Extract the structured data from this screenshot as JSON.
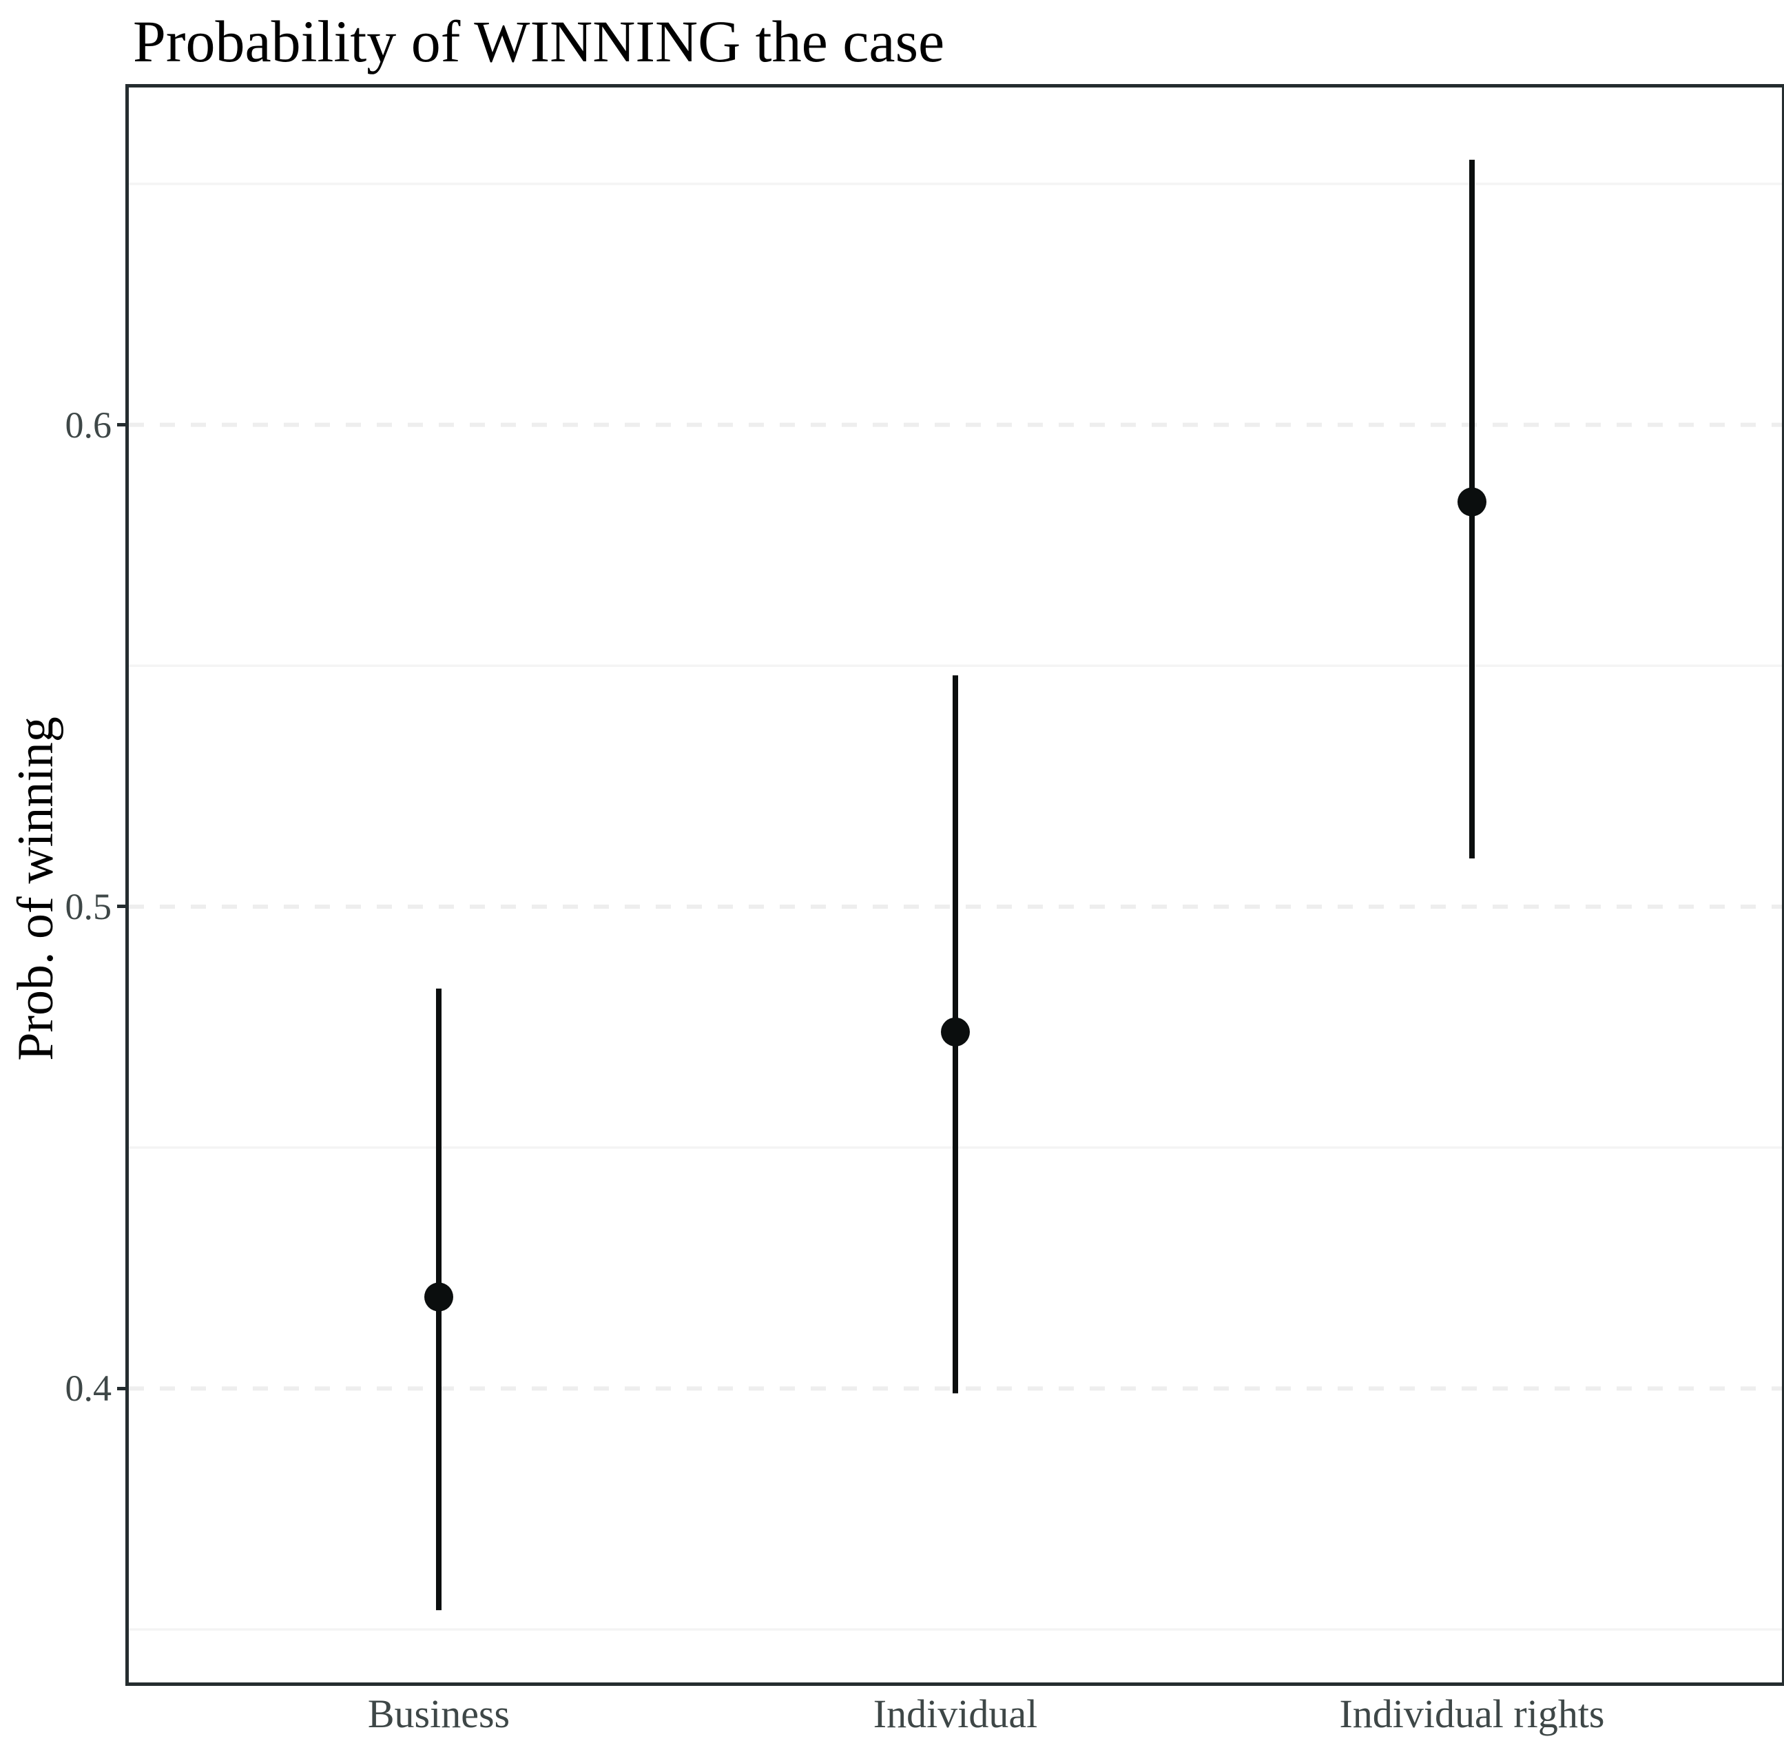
{
  "chart_data": {
    "type": "pointrange",
    "title": "Probability of WINNING the case",
    "ylabel": "Prob. of winning",
    "xlabel": "",
    "categories": [
      "Business",
      "Individual",
      "Individual rights"
    ],
    "series": [
      {
        "name": "predicted-probability",
        "estimates": [
          0.419,
          0.474,
          0.584
        ],
        "ci_lower": [
          0.354,
          0.399,
          0.51
        ],
        "ci_upper": [
          0.483,
          0.548,
          0.655
        ]
      }
    ],
    "ylim": [
      0.339,
      0.67
    ],
    "yticks_major": [
      0.4,
      0.5,
      0.6
    ],
    "ytick_labels": [
      "0.4",
      "0.5",
      "0.6"
    ],
    "yticks_minor": [
      0.35,
      0.45,
      0.55,
      0.65
    ],
    "grid": {
      "major": "dashed",
      "minor": "solid",
      "vertical": "none"
    },
    "legend": "none",
    "colors": {
      "point": "#0b0e0e",
      "interval_line": "#0b0e0e",
      "grid_major": "#eeeeee",
      "grid_minor": "#f4f4f4",
      "panel_border": "#252d2f",
      "axis_text": "#3e4747",
      "title_text": "#000000",
      "background": "#ffffff"
    },
    "style": {
      "point_radius": 21,
      "interval_width": 8,
      "grid_major_width": 6,
      "grid_minor_width": 3.5,
      "grid_major_dash": "22 23"
    }
  }
}
